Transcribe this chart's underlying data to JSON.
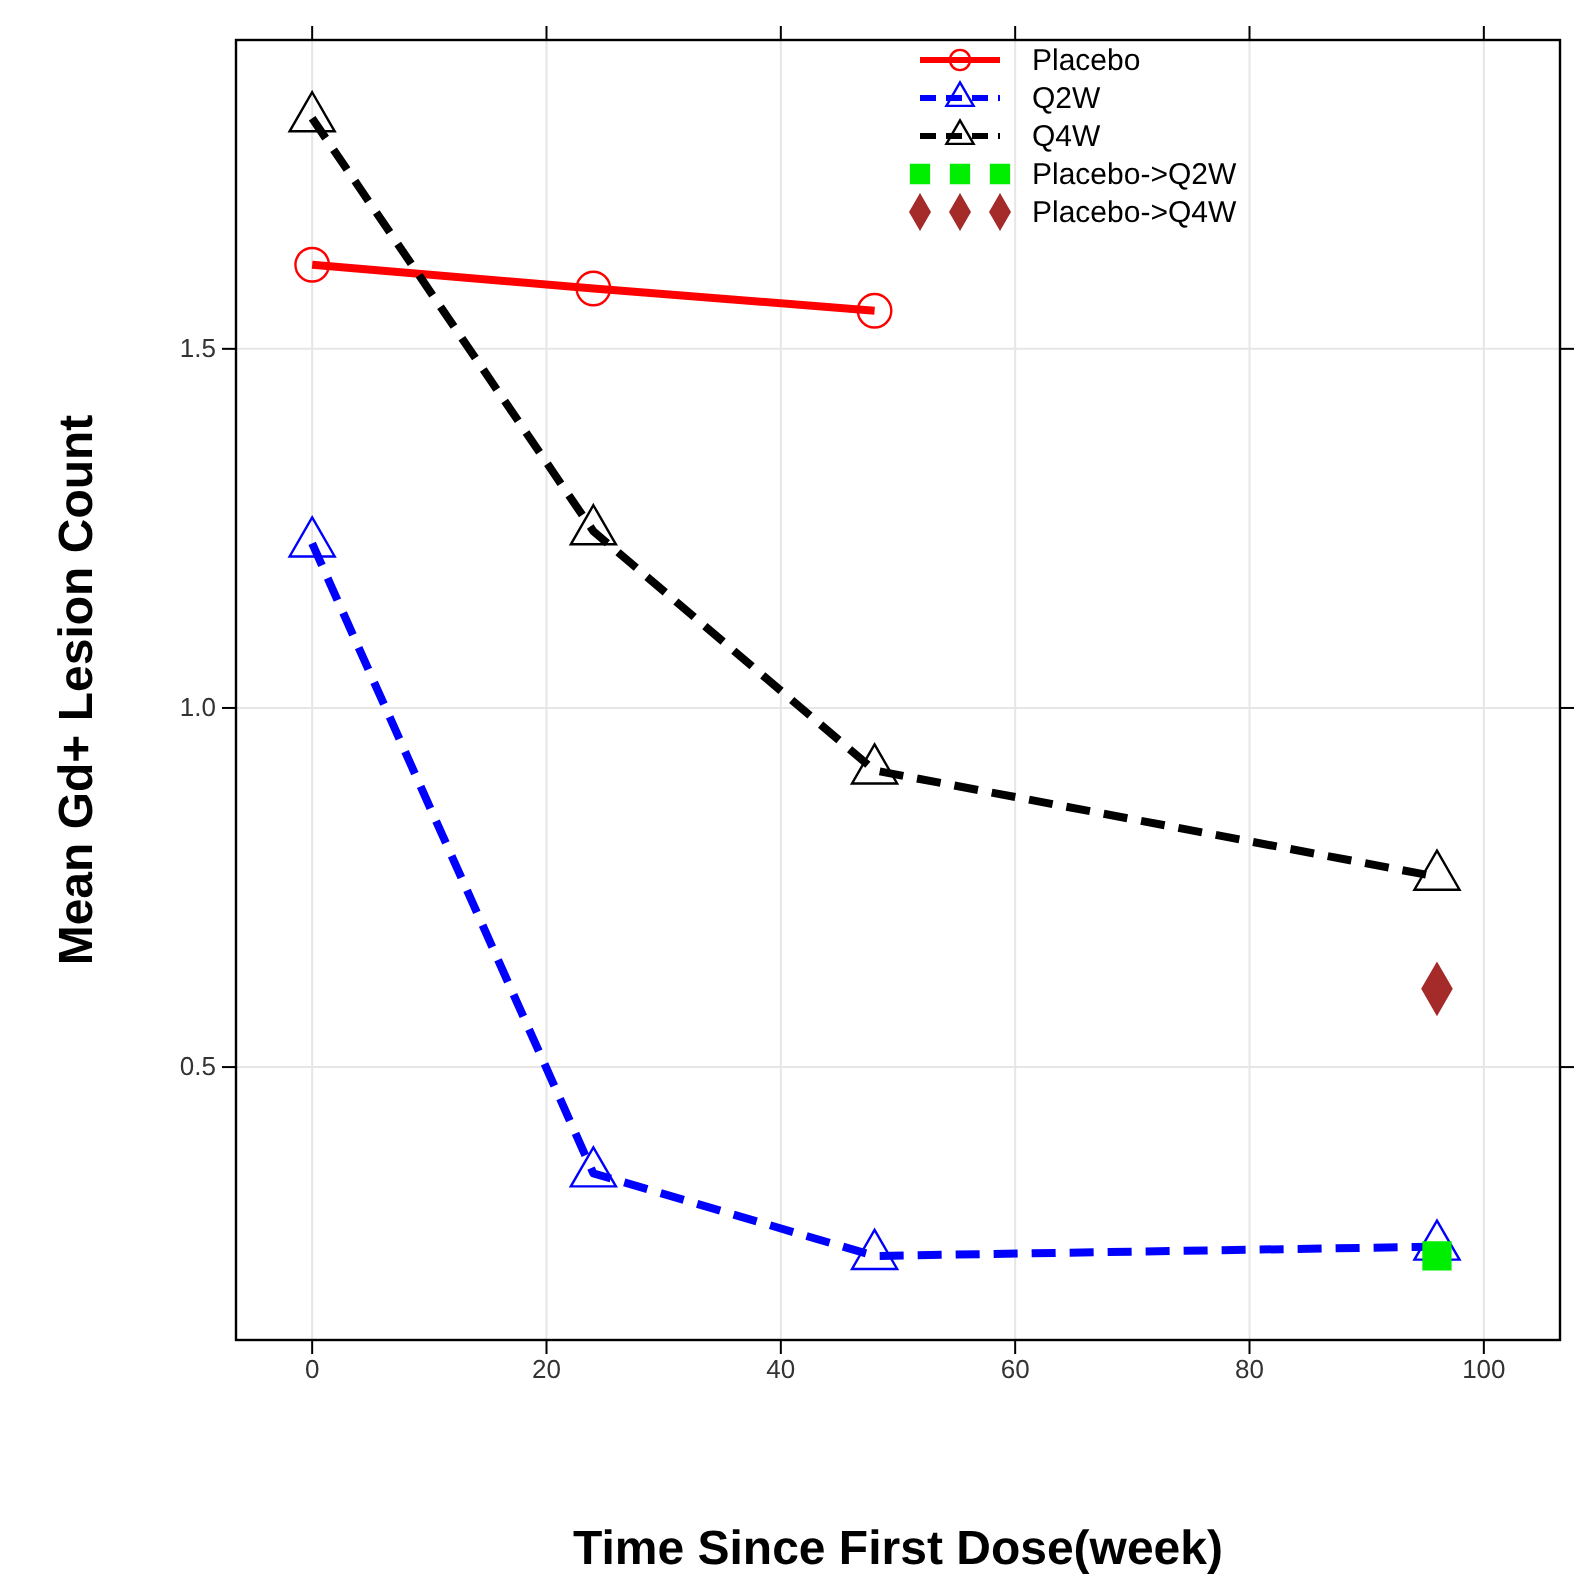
{
  "chart_data": {
    "type": "line",
    "xlabel": "Time Since First Dose(week)",
    "ylabel": "Mean Gd+ Lesion Count",
    "xlim": [
      -6.5,
      106.5
    ],
    "xticks": [
      0,
      20,
      40,
      60,
      80,
      100
    ],
    "ylim": [
      0.12,
      1.93
    ],
    "yticks": [
      0.5,
      {
        "value": 1,
        "label": "1.0"
      },
      1.5
    ],
    "grid": true,
    "legend": "top right",
    "series": [
      {
        "name": "Placebo",
        "color": "#ff0000",
        "x": [
          0,
          24,
          48
        ],
        "values": [
          1.617,
          1.584,
          1.553
        ],
        "marker": "circle",
        "line_style": "solid"
      },
      {
        "name": "Q2W",
        "color": "#0000ff",
        "x": [
          0,
          24,
          48,
          96
        ],
        "values": [
          1.229,
          0.352,
          0.237,
          0.25
        ],
        "marker": "triangle",
        "line_style": "dashed"
      },
      {
        "name": "Q4W",
        "color": "#000000",
        "x": [
          0,
          24,
          48,
          96
        ],
        "values": [
          1.821,
          1.246,
          0.913,
          0.765
        ],
        "marker": "triangle",
        "line_style": "dashed"
      },
      {
        "name": "Placebo->Q2W",
        "type": "scatter",
        "color": "#00ee00",
        "x": [
          96
        ],
        "values": [
          0.237
        ],
        "marker": "square"
      },
      {
        "name": "Placebo->Q4W",
        "type": "scatter",
        "color": "#a52a2a",
        "x": [
          96
        ],
        "values": [
          0.609
        ],
        "marker": "diamond"
      }
    ]
  }
}
